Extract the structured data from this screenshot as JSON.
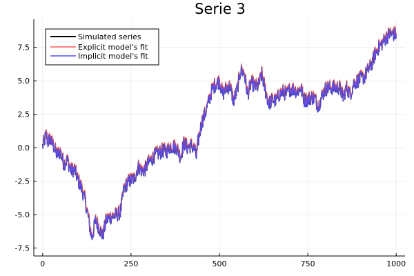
{
  "chart_data": {
    "type": "line",
    "title": "Serie 3",
    "xlabel": "",
    "ylabel": "",
    "xlim": [
      -25,
      1025
    ],
    "ylim": [
      -8.1,
      9.6
    ],
    "xticks": [
      0,
      250,
      500,
      750,
      1000
    ],
    "xtick_labels": [
      "0",
      "250",
      "500",
      "750",
      "1000"
    ],
    "yticks": [
      -7.5,
      -5.0,
      -2.5,
      0.0,
      2.5,
      5.0,
      7.5
    ],
    "ytick_labels": [
      "-7.5",
      "-5.0",
      "-2.5",
      "0.0",
      "2.5",
      "5.0",
      "7.5"
    ],
    "grid": true,
    "legend_position": "top-left",
    "anchors": {
      "x": [
        0,
        5,
        10,
        15,
        20,
        30,
        40,
        50,
        60,
        70,
        80,
        90,
        100,
        110,
        120,
        130,
        135,
        140,
        150,
        160,
        170,
        180,
        190,
        200,
        210,
        220,
        230,
        240,
        250,
        260,
        270,
        280,
        290,
        300,
        310,
        320,
        330,
        340,
        350,
        360,
        370,
        380,
        390,
        400,
        410,
        420,
        430,
        435,
        440,
        450,
        460,
        470,
        480,
        490,
        500,
        510,
        520,
        530,
        540,
        550,
        560,
        570,
        580,
        590,
        600,
        610,
        620,
        630,
        640,
        650,
        660,
        670,
        680,
        690,
        700,
        710,
        720,
        730,
        740,
        750,
        760,
        770,
        780,
        790,
        800,
        810,
        820,
        830,
        840,
        850,
        860,
        870,
        880,
        890,
        900,
        910,
        920,
        930,
        940,
        950,
        960,
        970,
        980,
        990,
        1000
      ],
      "y": [
        0.1,
        0.5,
        1.0,
        0.4,
        0.7,
        0.2,
        -0.5,
        -0.3,
        -1.2,
        -0.9,
        -1.7,
        -1.6,
        -2.4,
        -3.0,
        -3.9,
        -5.3,
        -6.2,
        -6.7,
        -5.4,
        -6.0,
        -6.6,
        -5.4,
        -5.2,
        -5.1,
        -5.0,
        -4.8,
        -3.1,
        -2.6,
        -2.4,
        -2.3,
        -1.4,
        -1.7,
        -1.6,
        -1.1,
        -0.8,
        -0.5,
        -0.4,
        -0.2,
        -0.3,
        0.1,
        0.1,
        0.0,
        -0.7,
        0.4,
        0.0,
        0.2,
        -0.1,
        -0.7,
        0.5,
        1.9,
        2.6,
        3.5,
        4.4,
        4.8,
        5.0,
        4.0,
        4.5,
        4.6,
        3.5,
        4.3,
        5.8,
        5.6,
        4.0,
        4.9,
        4.6,
        4.6,
        5.5,
        4.3,
        3.3,
        3.6,
        3.5,
        4.0,
        4.2,
        4.0,
        4.4,
        4.4,
        4.2,
        4.5,
        3.6,
        3.6,
        3.8,
        3.7,
        3.1,
        3.9,
        4.4,
        4.5,
        4.5,
        4.5,
        4.5,
        3.8,
        4.5,
        4.0,
        4.8,
        5.0,
        5.2,
        5.3,
        5.8,
        6.2,
        7.0,
        7.5,
        7.8,
        8.2,
        8.5,
        8.5,
        8.5
      ]
    },
    "series": [
      {
        "name": "Simulated series",
        "color": "#000000"
      },
      {
        "name": "Explicit model's fit",
        "color": "#ff5a5a"
      },
      {
        "name": "Implicit model's fit",
        "color": "#4f4fff"
      }
    ]
  }
}
